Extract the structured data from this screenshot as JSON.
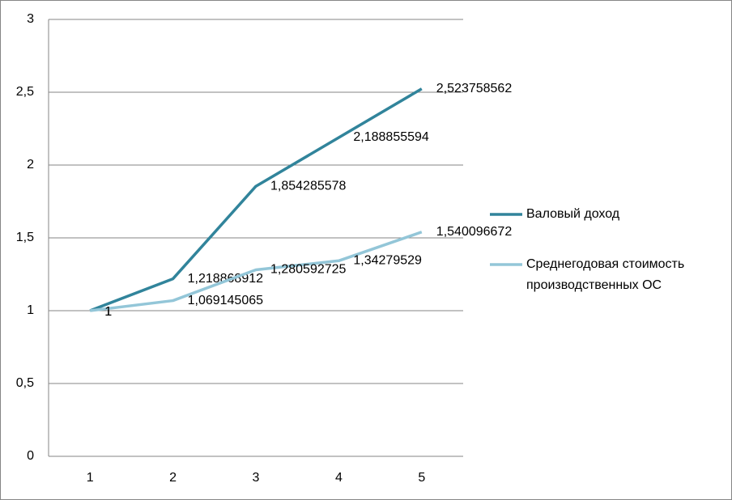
{
  "chart_data": {
    "type": "line",
    "categories": [
      "1",
      "2",
      "3",
      "4",
      "5"
    ],
    "series": [
      {
        "name": "Валовый доход",
        "color": "#31849b",
        "values": [
          1,
          1.218868912,
          1.854285578,
          2.188855594,
          2.523758562
        ],
        "value_labels": [
          "1",
          "1,218868912",
          "1,854285578",
          "2,188855594",
          "2,523758562"
        ]
      },
      {
        "name": "Среднегодовая стоимость производственных ОС",
        "color": "#93c6d8",
        "values": [
          1,
          1.069145065,
          1.280592725,
          1.34279529,
          1.540096672
        ],
        "value_labels": [
          "1",
          "1,069145065",
          "1,280592725",
          "1,34279529",
          "1,540096672"
        ]
      }
    ],
    "ylim": [
      0,
      3
    ],
    "yticks": [
      0,
      {
        "value": 0.5,
        "label": "0,5"
      },
      1,
      {
        "value": 1.5,
        "label": "1,5"
      },
      2,
      {
        "value": 2.5,
        "label": "2,5"
      },
      3
    ],
    "grid": true,
    "legend": "right"
  }
}
